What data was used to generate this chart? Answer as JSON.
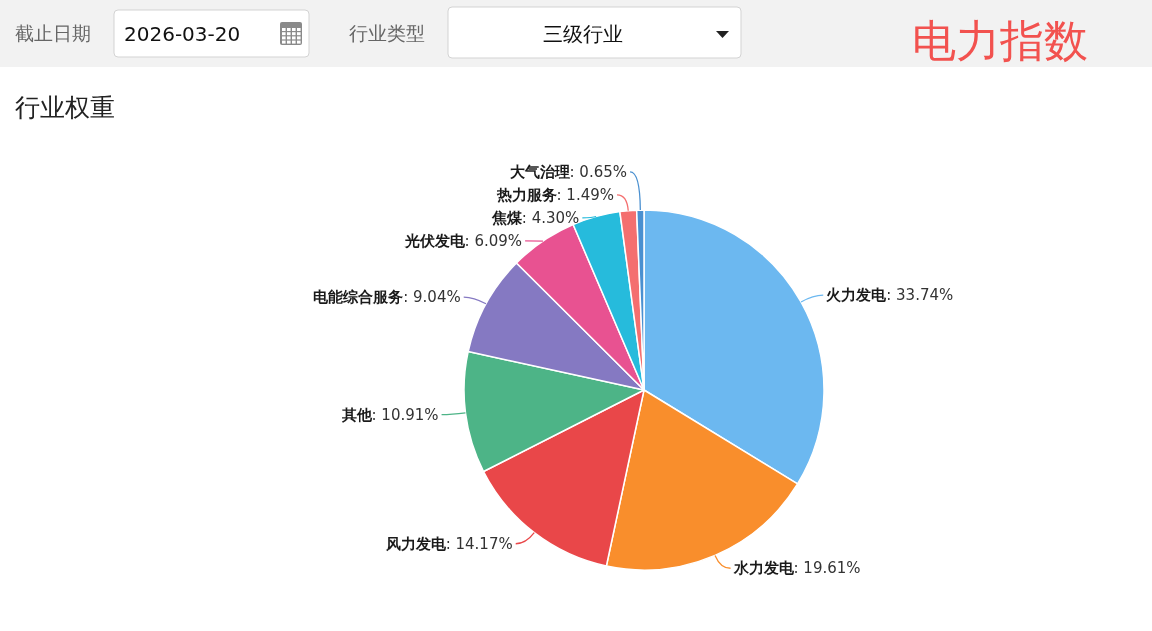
{
  "chart_data": {
    "type": "pie",
    "title": "电力指数",
    "subtitle": "行业权重",
    "categories": [
      "火力发电",
      "水力发电",
      "风力发电",
      "其他",
      "电能综合服务",
      "光伏发电",
      "焦煤",
      "热力服务",
      "大气治理"
    ],
    "values": [
      33.74,
      19.61,
      14.17,
      10.91,
      9.04,
      6.09,
      4.3,
      1.49,
      0.65
    ],
    "colors": [
      "#6cb8f0",
      "#f98e2c",
      "#e94749",
      "#4db487",
      "#8579c2",
      "#e85291",
      "#26bbdc",
      "#f46f6f",
      "#4a90d0"
    ],
    "value_labels": [
      ": 33.74%",
      ": 19.61%",
      ": 14.17%",
      ": 10.91%",
      ": 9.04%",
      ": 6.09%",
      ": 4.30%",
      ": 1.49%",
      ": 0.65%"
    ],
    "annotations": [
      "截止日期",
      "2026-03-20",
      "行业类型",
      "三级行业"
    ]
  }
}
